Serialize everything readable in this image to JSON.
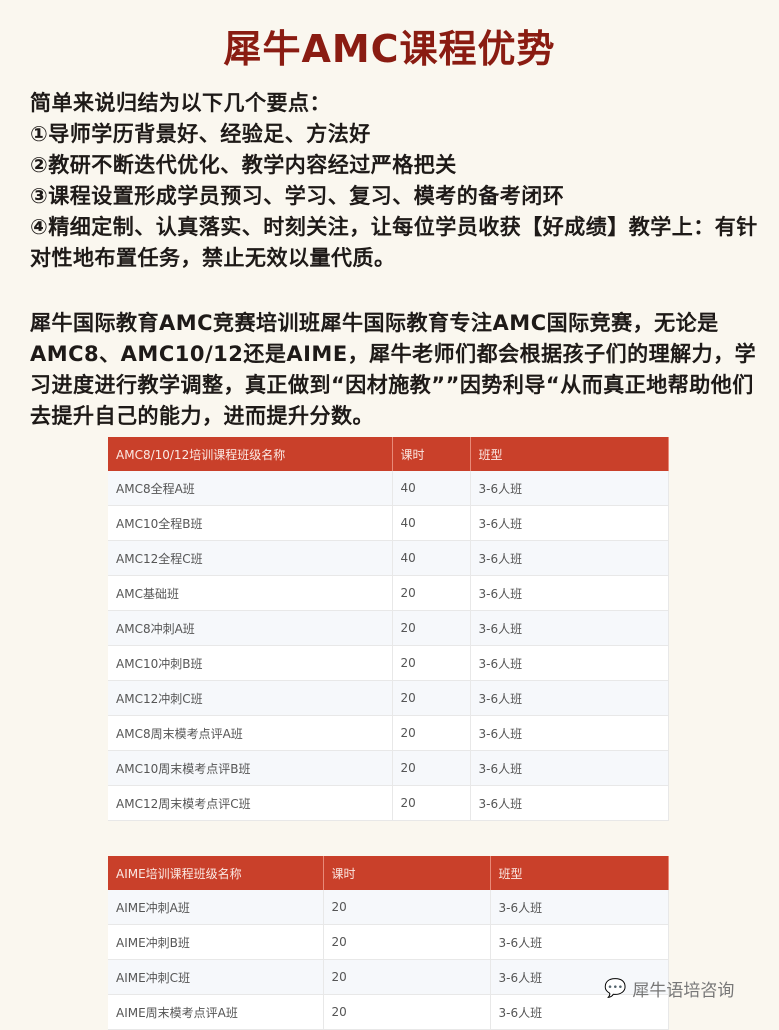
{
  "title": "犀牛AMC课程优势",
  "intro_lines": [
    "简单来说归结为以下几个要点：",
    "①导师学历背景好、经验足、方法好",
    "②教研不断迭代优化、教学内容经过严格把关",
    "③课程设置形成学员预习、学习、复习、模考的备考闭环",
    "④精细定制、认真落实、时刻关注，让每位学员收获【好成绩】教学上：有针对性地布置任务，禁止无效以量代质。"
  ],
  "paragraph": "犀牛国际教育AMC竞赛培训班犀牛国际教育专注AMC国际竞赛，无论是AMC8、AMC10/12还是AIME，犀牛老师们都会根据孩子们的理解力，学习进度进行教学调整，真正做到“因材施教””因势利导“从而真正地帮助他们去提升自己的能力，进而提升分数。",
  "table1": {
    "headers": [
      "AMC8/10/12培训课程班级名称",
      "课时",
      "班型"
    ],
    "rows": [
      [
        "AMC8全程A班",
        "40",
        "3-6人班"
      ],
      [
        "AMC10全程B班",
        "40",
        "3-6人班"
      ],
      [
        "AMC12全程C班",
        "40",
        "3-6人班"
      ],
      [
        "AMC基础班",
        "20",
        "3-6人班"
      ],
      [
        "AMC8冲刺A班",
        "20",
        "3-6人班"
      ],
      [
        "AMC10冲刺B班",
        "20",
        "3-6人班"
      ],
      [
        "AMC12冲刺C班",
        "20",
        "3-6人班"
      ],
      [
        "AMC8周末模考点评A班",
        "20",
        "3-6人班"
      ],
      [
        "AMC10周末模考点评B班",
        "20",
        "3-6人班"
      ],
      [
        "AMC12周末模考点评C班",
        "20",
        "3-6人班"
      ]
    ]
  },
  "table2": {
    "headers": [
      "AIME培训课程班级名称",
      "课时",
      "班型"
    ],
    "rows": [
      [
        "AIME冲刺A班",
        "20",
        "3-6人班"
      ],
      [
        "AIME冲刺B班",
        "20",
        "3-6人班"
      ],
      [
        "AIME冲刺C班",
        "20",
        "3-6人班"
      ],
      [
        "AIME周末模考点评A班",
        "20",
        "3-6人班"
      ]
    ]
  },
  "watermark": "犀牛语培咨询",
  "colors": {
    "title": "#8a1c12",
    "table_header": "#c9402a"
  }
}
